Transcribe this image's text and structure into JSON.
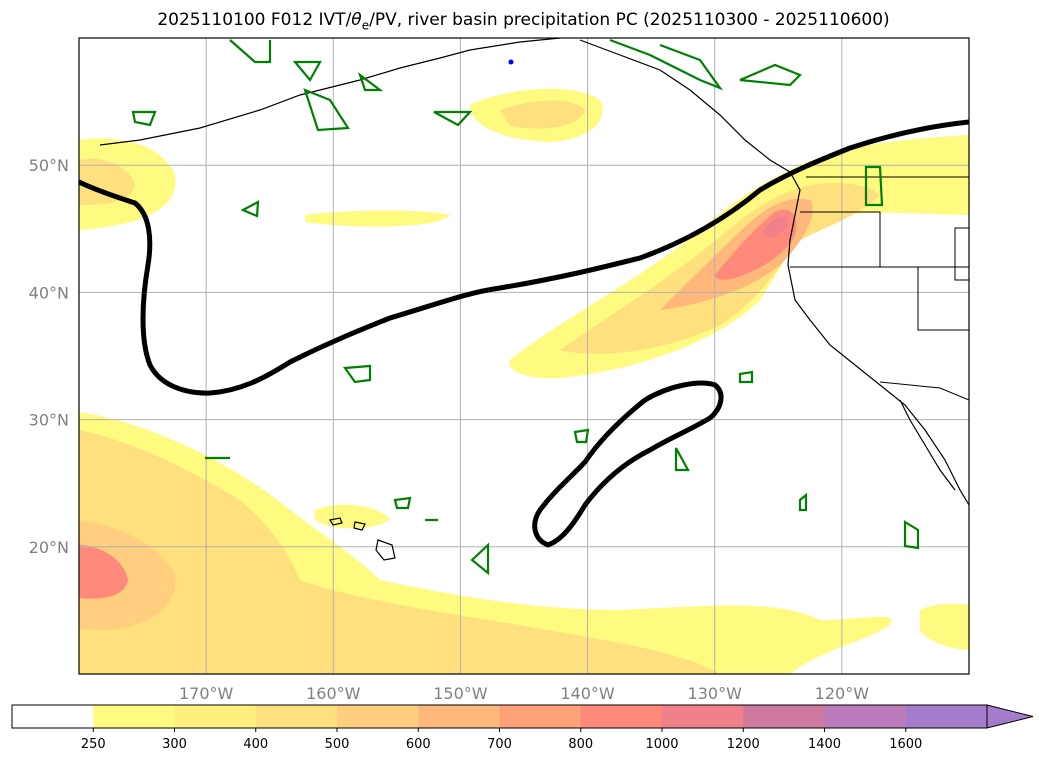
{
  "title": "2025110100 F012 IVT/θe/PV, river basin precipitation PC (2025110300 - 2025110600)",
  "title_parts": {
    "pre": "2025110100 F012 IVT/",
    "theta": "θ",
    "sub": "e",
    "post": "/PV, river basin precipitation PC (2025110300 - 2025110600)"
  },
  "map": {
    "lon_range": [
      -180,
      -110
    ],
    "lat_range": [
      10,
      60
    ],
    "lat_ticks": [
      {
        "value": 20,
        "label": "20°N"
      },
      {
        "value": 30,
        "label": "30°N"
      },
      {
        "value": 40,
        "label": "40°N"
      },
      {
        "value": 50,
        "label": "50°N"
      }
    ],
    "lon_ticks": [
      {
        "value": -170,
        "label": "170°W"
      },
      {
        "value": -160,
        "label": "160°W"
      },
      {
        "value": -150,
        "label": "150°W"
      },
      {
        "value": -140,
        "label": "140°W"
      },
      {
        "value": -130,
        "label": "130°W"
      },
      {
        "value": -120,
        "label": "120°W"
      }
    ],
    "grid": true
  },
  "colorbar": {
    "levels": [
      "250",
      "300",
      "400",
      "500",
      "600",
      "700",
      "800",
      "1000",
      "1200",
      "1400",
      "1600"
    ],
    "colors": [
      "#ffffff",
      "#fffb80",
      "#fff07e",
      "#ffe07e",
      "#ffce7e",
      "#ffb87b",
      "#ffa27a",
      "#ff8a7c",
      "#f0808a",
      "#d07aa0",
      "#bc7cbc",
      "#a57ccc"
    ],
    "extend": "max"
  },
  "colors": {
    "theta_e_contour": "#000000",
    "pv_contour": "#008000",
    "coastline": "#000000"
  }
}
